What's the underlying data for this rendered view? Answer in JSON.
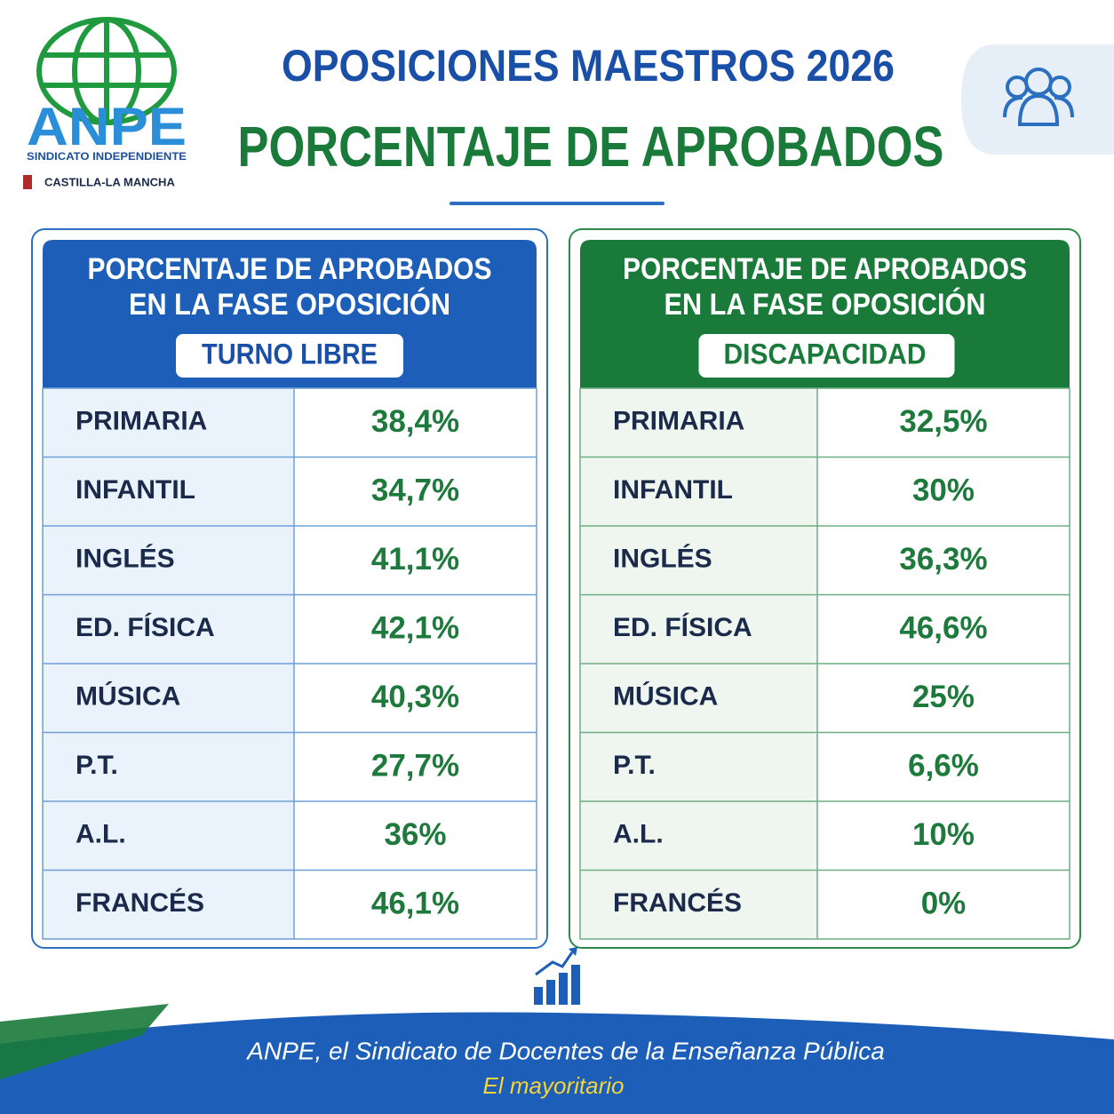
{
  "logo": {
    "name": "ANPE",
    "tagline": "SINDICATO INDEPENDIENTE",
    "region": "CASTILLA-LA MANCHA"
  },
  "header": {
    "title": "OPOSICIONES MAESTROS 2026",
    "subtitle": "PORCENTAJE DE APROBADOS"
  },
  "tables": [
    {
      "title_lines": [
        "PORCENTAJE DE APROBADOS",
        "EN LA FASE OPOSICIÓN"
      ],
      "badge": "TURNO LIBRE",
      "rows": [
        [
          "PRIMARIA",
          "38,4%"
        ],
        [
          "INFANTIL",
          "34,7%"
        ],
        [
          "INGLÉS",
          "41,1%"
        ],
        [
          "ED. FÍSICA",
          "42,1%"
        ],
        [
          "MÚSICA",
          "40,3%"
        ],
        [
          "P.T.",
          "27,7%"
        ],
        [
          "A.L.",
          "36%"
        ],
        [
          "FRANCÉS",
          "46,1%"
        ]
      ]
    },
    {
      "title_lines": [
        "PORCENTAJE DE APROBADOS",
        "EN LA FASE OPOSICIÓN"
      ],
      "badge": "DISCAPACIDAD",
      "rows": [
        [
          "PRIMARIA",
          "32,5%"
        ],
        [
          "INFANTIL",
          "30%"
        ],
        [
          "INGLÉS",
          "36,3%"
        ],
        [
          "ED. FÍSICA",
          "46,6%"
        ],
        [
          "MÚSICA",
          "25%"
        ],
        [
          "P.T.",
          "6,6%"
        ],
        [
          "A.L.",
          "10%"
        ],
        [
          "FRANCÉS",
          "0%"
        ]
      ]
    }
  ],
  "footer": {
    "line1": "ANPE, el Sindicato de Docentes de la Enseñanza Pública",
    "line2": "El mayoritario"
  }
}
